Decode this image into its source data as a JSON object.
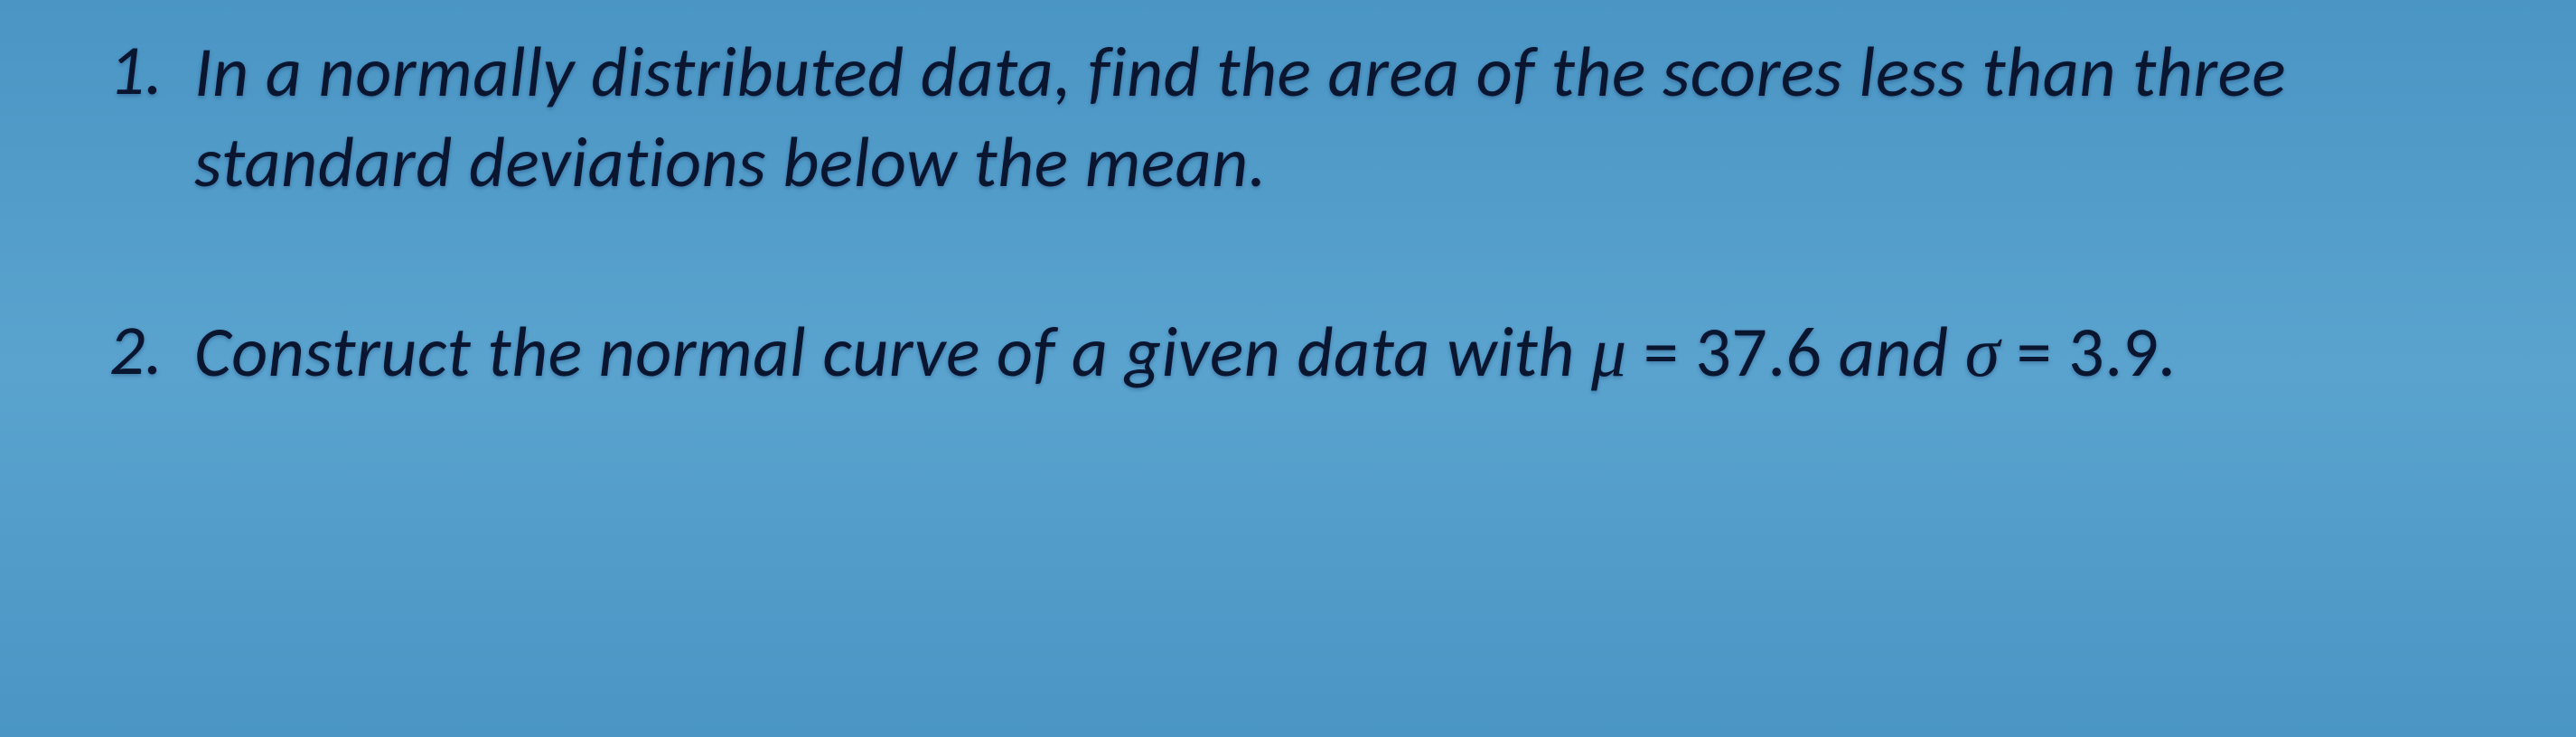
{
  "background_gradient": {
    "top": "#4a95c4",
    "mid": "#5aa3cf",
    "bottom": "#4a95c4"
  },
  "text_color": "#0a1530",
  "font_style": "italic",
  "font_size_pt": 58,
  "questions": [
    {
      "number": "1.",
      "text": "In a normally distributed data,  find the area of the scores less than three standard deviations below the mean."
    },
    {
      "number": "2.",
      "text_prefix": "Construct the normal curve of a given data with ",
      "mu_symbol": "μ",
      "mu_equals": " = ",
      "mu_value": "37.6",
      "text_middle": " and ",
      "sigma_symbol": "σ",
      "sigma_equals": " = ",
      "sigma_value": "3.9",
      "text_suffix": "."
    }
  ]
}
